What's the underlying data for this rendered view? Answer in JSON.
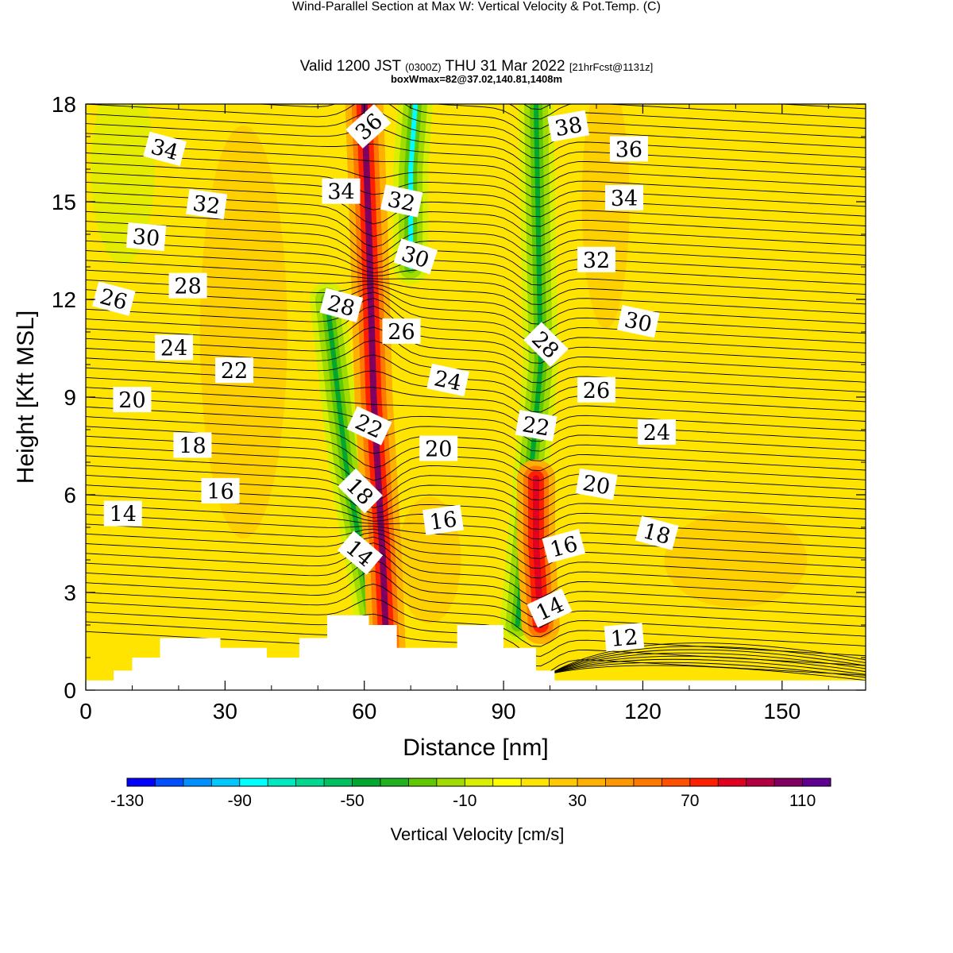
{
  "header": {
    "title": "Wind-Parallel Section at Max W: Vertical Velocity & Pot.Temp.",
    "copyright": "(C)",
    "valid_prefix": "Valid 1200 JST",
    "utc": "(0300Z)",
    "valid_date": "THU 31 Mar 2022",
    "forecast": "[21hrFcst@1131z]",
    "boxwmax": "boxWmax=82@37.02,140.81,1408m"
  },
  "colors": {
    "background_field": "#ffe400",
    "updraft": "#ff2000",
    "downdraft": "#00a020",
    "contour_line": "#000000"
  },
  "chart_data": {
    "type": "heatmap",
    "xlabel": "Distance [nm]",
    "ylabel": "Height [Kft MSL]",
    "xlim": [
      0,
      168
    ],
    "ylim": [
      0,
      18
    ],
    "x_ticks": [
      0,
      30,
      60,
      90,
      120,
      150
    ],
    "y_ticks": [
      0,
      3,
      6,
      9,
      12,
      15,
      18
    ],
    "field": "Vertical Velocity",
    "contour_field": "Potential Temperature",
    "colorbar": {
      "title": "Vertical Velocity [cm/s]",
      "tick_labels": [
        "-130",
        "-90",
        "-50",
        "-10",
        "30",
        "70",
        "110"
      ],
      "levels": [
        -130,
        -120,
        -110,
        -100,
        -90,
        -80,
        -70,
        -60,
        -50,
        -40,
        -30,
        -20,
        -10,
        0,
        10,
        20,
        30,
        40,
        50,
        60,
        70,
        80,
        90,
        100,
        110,
        120
      ],
      "colors": [
        "#0000ff",
        "#0050ff",
        "#0090ff",
        "#00c8ff",
        "#00ffff",
        "#00e8c0",
        "#00d890",
        "#00c060",
        "#00a830",
        "#20b020",
        "#60c800",
        "#a0dc00",
        "#d8f000",
        "#ffff00",
        "#ffe400",
        "#ffc800",
        "#ffb000",
        "#ff9800",
        "#ff7800",
        "#ff5000",
        "#ff2000",
        "#e00020",
        "#b00040",
        "#800060",
        "#600090"
      ]
    },
    "updraft_bands": [
      {
        "x": [
          65,
          64,
          62,
          61,
          60
        ],
        "y": [
          0.5,
          4,
          9,
          14,
          18
        ],
        "peak": 110
      },
      {
        "x": [
          98,
          97,
          97
        ],
        "y": [
          2,
          4.5,
          6.5
        ],
        "peak": 80
      }
    ],
    "downdraft_bands": [
      {
        "x": [
          62,
          56,
          52
        ],
        "y": [
          2,
          7,
          12
        ],
        "peak": -50
      },
      {
        "x": [
          70,
          70,
          71
        ],
        "y": [
          13,
          16,
          18
        ],
        "peak": -90
      },
      {
        "x": [
          93,
          98,
          97
        ],
        "y": [
          2,
          10,
          18
        ],
        "peak": -50
      }
    ],
    "terrain_kft": [
      {
        "x": 0,
        "h": 0.3
      },
      {
        "x": 6,
        "h": 0.6
      },
      {
        "x": 10,
        "h": 1.0
      },
      {
        "x": 16,
        "h": 1.6
      },
      {
        "x": 29,
        "h": 1.3
      },
      {
        "x": 39,
        "h": 1.0
      },
      {
        "x": 46,
        "h": 1.6
      },
      {
        "x": 52,
        "h": 2.3
      },
      {
        "x": 61,
        "h": 2.0
      },
      {
        "x": 67,
        "h": 1.3
      },
      {
        "x": 72,
        "h": 1.3
      },
      {
        "x": 80,
        "h": 2.0
      },
      {
        "x": 90,
        "h": 1.3
      },
      {
        "x": 97,
        "h": 0.6
      },
      {
        "x": 101,
        "h": 0.3
      },
      {
        "x": 168,
        "h": 0.3
      }
    ],
    "contour_labels": [
      {
        "text": "34",
        "x": 17,
        "y": 16.6,
        "rot": 15
      },
      {
        "text": "32",
        "x": 26,
        "y": 14.9,
        "rot": 8
      },
      {
        "text": "30",
        "x": 13,
        "y": 13.9,
        "rot": 5
      },
      {
        "text": "28",
        "x": 22,
        "y": 12.4,
        "rot": 0
      },
      {
        "text": "26",
        "x": 6,
        "y": 12.0,
        "rot": 15
      },
      {
        "text": "24",
        "x": 19,
        "y": 10.5,
        "rot": 0
      },
      {
        "text": "22",
        "x": 32,
        "y": 9.8,
        "rot": 0
      },
      {
        "text": "20",
        "x": 10,
        "y": 8.9,
        "rot": 0
      },
      {
        "text": "18",
        "x": 23,
        "y": 7.5,
        "rot": 0
      },
      {
        "text": "16",
        "x": 29,
        "y": 6.1,
        "rot": 0
      },
      {
        "text": "14",
        "x": 8,
        "y": 5.4,
        "rot": 0
      },
      {
        "text": "36",
        "x": 61,
        "y": 17.3,
        "rot": -42
      },
      {
        "text": "34",
        "x": 55,
        "y": 15.3,
        "rot": 0
      },
      {
        "text": "32",
        "x": 68,
        "y": 15.0,
        "rot": 12
      },
      {
        "text": "30",
        "x": 71,
        "y": 13.3,
        "rot": 18
      },
      {
        "text": "28",
        "x": 55,
        "y": 11.8,
        "rot": 15
      },
      {
        "text": "26",
        "x": 68,
        "y": 11.0,
        "rot": 0
      },
      {
        "text": "24",
        "x": 78,
        "y": 9.5,
        "rot": 12
      },
      {
        "text": "22",
        "x": 61,
        "y": 8.1,
        "rot": 25
      },
      {
        "text": "20",
        "x": 76,
        "y": 7.4,
        "rot": 0
      },
      {
        "text": "18",
        "x": 59,
        "y": 6.1,
        "rot": 45
      },
      {
        "text": "16",
        "x": 77,
        "y": 5.2,
        "rot": -8
      },
      {
        "text": "14",
        "x": 59,
        "y": 4.2,
        "rot": 40
      },
      {
        "text": "38",
        "x": 104,
        "y": 17.3,
        "rot": -10
      },
      {
        "text": "36",
        "x": 117,
        "y": 16.6,
        "rot": 0
      },
      {
        "text": "34",
        "x": 116,
        "y": 15.1,
        "rot": 0
      },
      {
        "text": "32",
        "x": 110,
        "y": 13.2,
        "rot": 0
      },
      {
        "text": "30",
        "x": 119,
        "y": 11.3,
        "rot": 12
      },
      {
        "text": "28",
        "x": 99,
        "y": 10.6,
        "rot": 45
      },
      {
        "text": "26",
        "x": 110,
        "y": 9.2,
        "rot": 0
      },
      {
        "text": "24",
        "x": 123,
        "y": 7.9,
        "rot": 0
      },
      {
        "text": "22",
        "x": 97,
        "y": 8.1,
        "rot": 10
      },
      {
        "text": "20",
        "x": 110,
        "y": 6.3,
        "rot": 10
      },
      {
        "text": "18",
        "x": 123,
        "y": 4.8,
        "rot": 15
      },
      {
        "text": "16",
        "x": 103,
        "y": 4.4,
        "rot": -15
      },
      {
        "text": "14",
        "x": 100,
        "y": 2.5,
        "rot": -25
      },
      {
        "text": "12",
        "x": 116,
        "y": 1.6,
        "rot": -5
      }
    ]
  }
}
